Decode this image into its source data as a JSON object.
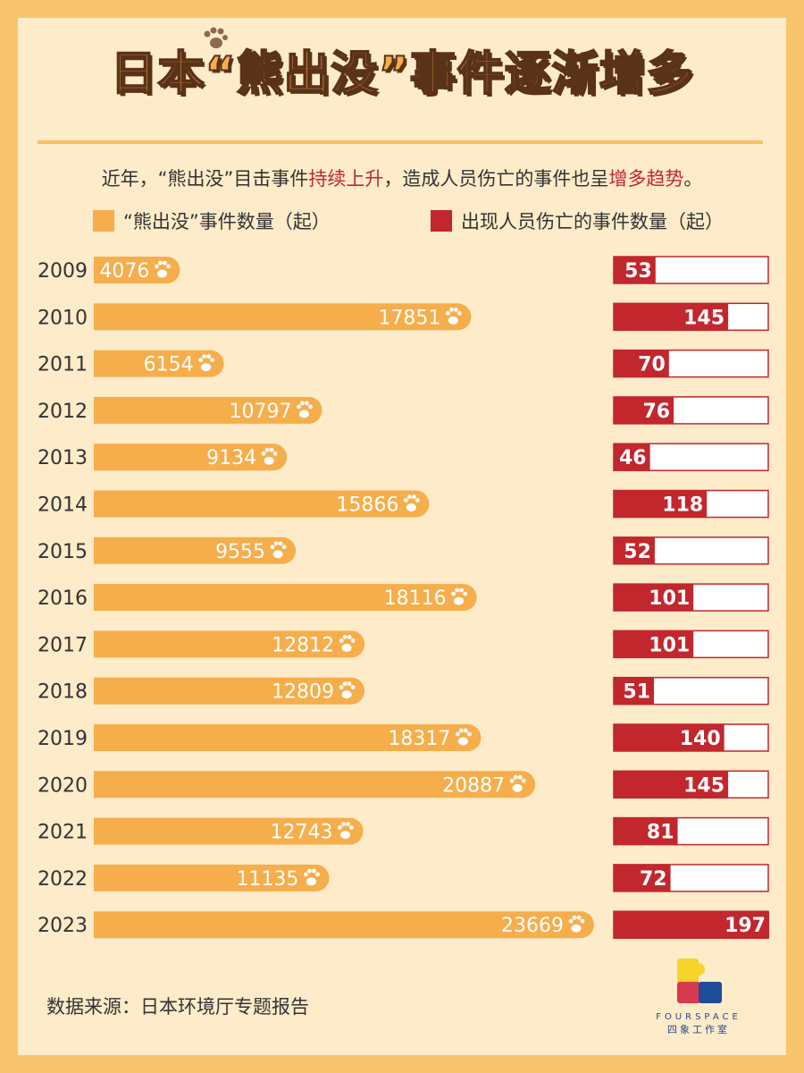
{
  "title": "日本“熊出没”事件逐渐增多",
  "subtitle": {
    "p1": "近年，“熊出没”目击事件",
    "hl1": "持续上升",
    "p2": "，造成人员伤亡的事件也呈",
    "hl2": "增多趋势",
    "p3": "。"
  },
  "source": "数据来源：日本环境厅专题报告",
  "logo": {
    "en": "FOURSPACE",
    "cn": "四象工作室"
  },
  "colors": {
    "orange": "#f5ae4b",
    "red": "#c1272d",
    "bg": "#fdebc9",
    "border": "#f8c46e"
  },
  "chart_data": {
    "type": "bar",
    "title": "日本“熊出没”事件逐渐增多",
    "categories": [
      "2009",
      "2010",
      "2011",
      "2012",
      "2013",
      "2014",
      "2015",
      "2016",
      "2017",
      "2018",
      "2019",
      "2020",
      "2021",
      "2022",
      "2023"
    ],
    "series": [
      {
        "name": "“熊出没”事件数量（起）",
        "values": [
          4076,
          17851,
          6154,
          10797,
          9134,
          15866,
          9555,
          18116,
          12812,
          12809,
          18317,
          20887,
          12743,
          11135,
          23669
        ]
      },
      {
        "name": "出现人员伤亡的事件数量（起）",
        "values": [
          53,
          145,
          70,
          76,
          46,
          118,
          52,
          101,
          101,
          51,
          140,
          145,
          81,
          72,
          197
        ]
      }
    ],
    "legend_position": "top",
    "grid": false
  }
}
